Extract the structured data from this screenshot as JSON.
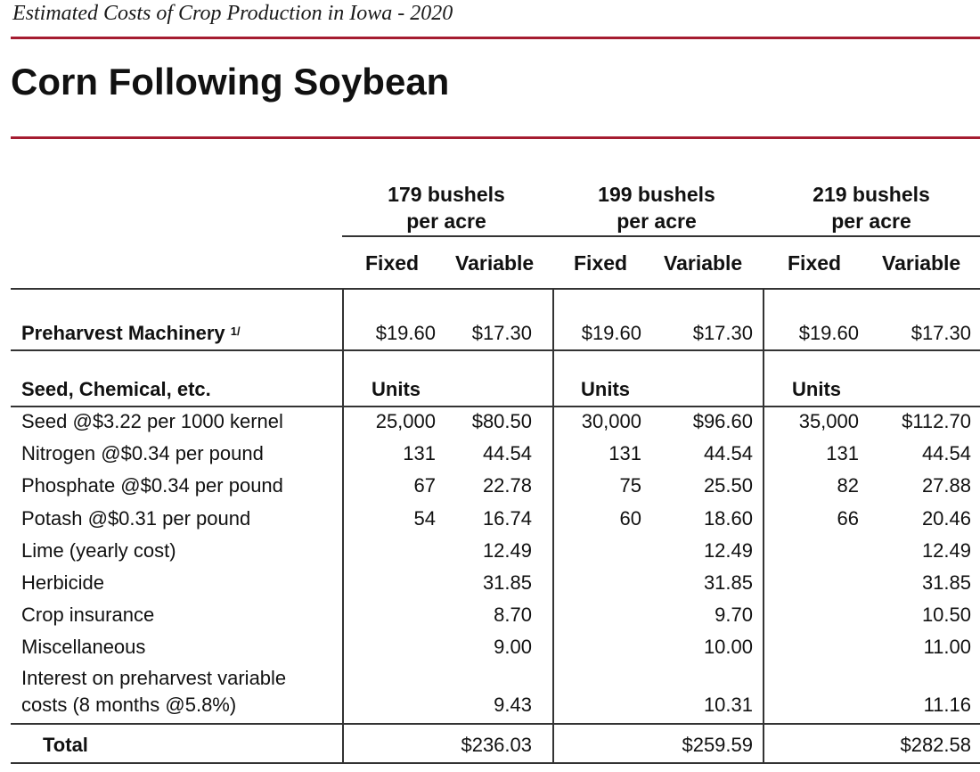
{
  "header": {
    "subtitle": "Estimated Costs of Crop Production in Iowa - 2020",
    "title": "Corn Following Soybean"
  },
  "groups": [
    {
      "line1": "179 bushels",
      "line2": "per acre"
    },
    {
      "line1": "199 bushels",
      "line2": "per acre"
    },
    {
      "line1": "219 bushels",
      "line2": "per acre"
    }
  ],
  "col_headers": [
    "Fixed",
    "Variable",
    "Fixed",
    "Variable",
    "Fixed",
    "Variable"
  ],
  "machinery": {
    "label": "Preharvest Machinery",
    "footnote": "1/",
    "values": [
      "$19.60",
      "$17.30",
      "$19.60",
      "$17.30",
      "$19.60",
      "$17.30"
    ]
  },
  "seed_section": {
    "label": "Seed, Chemical, etc.",
    "units": [
      "Units",
      "Units",
      "Units"
    ]
  },
  "rows": [
    {
      "label": "Seed @$3.22 per 1000 kernel",
      "v": [
        "25,000",
        "$80.50",
        "30,000",
        "$96.60",
        "35,000",
        "$112.70"
      ]
    },
    {
      "label": "Nitrogen @$0.34 per pound",
      "v": [
        "131",
        "44.54",
        "131",
        "44.54",
        "131",
        "44.54"
      ]
    },
    {
      "label": "Phosphate @$0.34 per pound",
      "v": [
        "67",
        "22.78",
        "75",
        "25.50",
        "82",
        "27.88"
      ]
    },
    {
      "label": "Potash @$0.31 per pound",
      "v": [
        "54",
        "16.74",
        "60",
        "18.60",
        "66",
        "20.46"
      ]
    },
    {
      "label": "Lime (yearly cost)",
      "v": [
        "",
        "12.49",
        "",
        "12.49",
        "",
        "12.49"
      ]
    },
    {
      "label": "Herbicide",
      "v": [
        "",
        "31.85",
        "",
        "31.85",
        "",
        "31.85"
      ]
    },
    {
      "label": "Crop insurance",
      "v": [
        "",
        "8.70",
        "",
        "9.70",
        "",
        "10.50"
      ]
    },
    {
      "label": "Miscellaneous",
      "v": [
        "",
        "9.00",
        "",
        "10.00",
        "",
        "11.00"
      ]
    }
  ],
  "interest": {
    "label1": "Interest on preharvest variable",
    "label2": "costs (8 months @5.8%)",
    "v": [
      "",
      "9.43",
      "",
      "10.31",
      "",
      "11.16"
    ]
  },
  "total": {
    "label": "Total",
    "v": [
      "",
      "$236.03",
      "",
      "$259.59",
      "",
      "$282.58"
    ]
  },
  "colors": {
    "accent_rule": "#a51c30",
    "text": "#111111"
  }
}
